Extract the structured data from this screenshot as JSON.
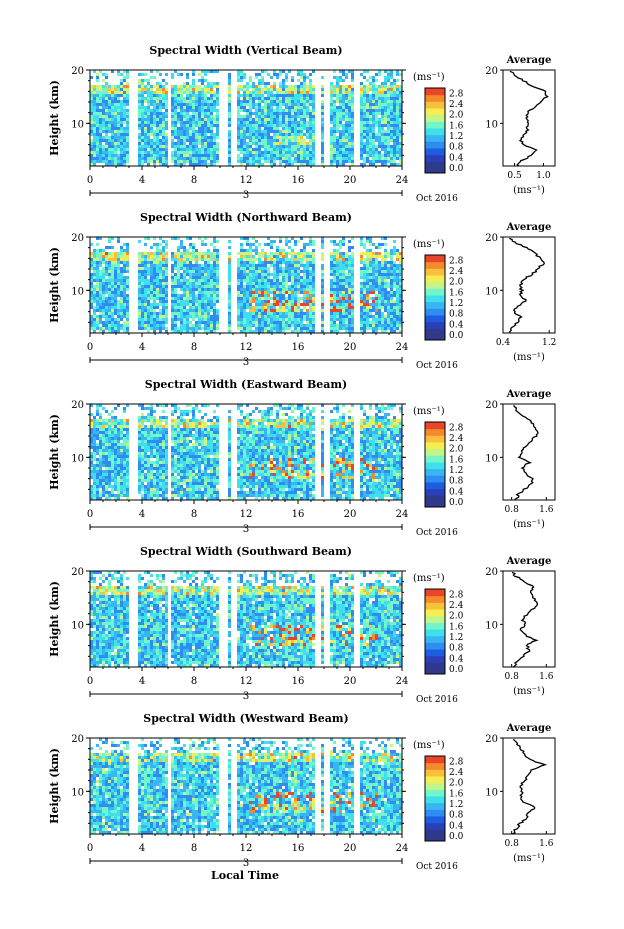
{
  "figure": {
    "xaxis_title": "Local Time",
    "month_label": "Oct 2016",
    "day_label": "3",
    "colorbar_unit": "(ms⁻¹)",
    "avg_title": "Average",
    "avg_unit": "(ms⁻¹)"
  },
  "chart_data": [
    {
      "type": "heatmap",
      "title": "Spectral Width (Vertical Beam)",
      "ylabel": "Height (km)",
      "xlim": [
        0,
        24
      ],
      "ylim": [
        2,
        20
      ],
      "xticks": [
        0,
        4,
        8,
        12,
        16,
        20,
        24
      ],
      "yticks": [
        10,
        20
      ],
      "colorbar": {
        "ticks": [
          "0.0",
          "0.4",
          "0.8",
          "1.2",
          "1.6",
          "2.0",
          "2.4",
          "2.8"
        ],
        "range": [
          0,
          3.0
        ]
      },
      "gaps_hours": [
        [
          3.0,
          3.5
        ],
        [
          5.8,
          6.2
        ],
        [
          9.9,
          10.4
        ],
        [
          10.7,
          11.1
        ],
        [
          17.2,
          17.6
        ],
        [
          18.0,
          18.3
        ],
        [
          20.3,
          20.6
        ]
      ],
      "average_profile": {
        "xlim": [
          0.3,
          1.2
        ],
        "xticks": [
          "0.5",
          "1.0"
        ],
        "ylim": [
          2,
          20
        ],
        "yticks": [
          "10",
          "20"
        ],
        "height_km": [
          2,
          3,
          4,
          5,
          6,
          7,
          8,
          9,
          10,
          11,
          12,
          13,
          14,
          15,
          16,
          17,
          18,
          19,
          20
        ],
        "width": [
          0.55,
          0.62,
          0.8,
          0.9,
          0.65,
          0.6,
          0.7,
          0.72,
          0.75,
          0.7,
          0.72,
          0.85,
          0.95,
          1.05,
          1.02,
          0.8,
          0.65,
          0.5,
          0.4
        ]
      }
    },
    {
      "type": "heatmap",
      "title": "Spectral Width (Northward Beam)",
      "ylabel": "Height (km)",
      "xlim": [
        0,
        24
      ],
      "ylim": [
        2,
        20
      ],
      "xticks": [
        0,
        4,
        8,
        12,
        16,
        20,
        24
      ],
      "yticks": [
        10,
        20
      ],
      "colorbar": {
        "ticks": [
          "0.0",
          "0.4",
          "0.8",
          "1.2",
          "1.6",
          "2.0",
          "2.4",
          "2.8"
        ],
        "range": [
          0,
          3.0
        ]
      },
      "gaps_hours": [
        [
          3.0,
          3.5
        ],
        [
          5.8,
          6.2
        ],
        [
          9.9,
          10.4
        ],
        [
          10.7,
          11.1
        ],
        [
          17.2,
          17.6
        ],
        [
          18.0,
          18.3
        ],
        [
          20.3,
          20.6
        ]
      ],
      "average_profile": {
        "xlim": [
          0.4,
          1.3
        ],
        "xticks": [
          "0.4",
          "1.2"
        ],
        "ylim": [
          2,
          20
        ],
        "yticks": [
          "10",
          "20"
        ],
        "height_km": [
          2,
          3,
          4,
          5,
          6,
          7,
          8,
          9,
          10,
          11,
          12,
          13,
          14,
          15,
          16,
          17,
          18,
          19,
          20
        ],
        "width": [
          0.5,
          0.55,
          0.65,
          0.7,
          0.6,
          0.65,
          0.8,
          0.7,
          0.72,
          0.7,
          0.75,
          0.9,
          1.0,
          1.1,
          1.05,
          0.95,
          0.8,
          0.6,
          0.5
        ]
      }
    },
    {
      "type": "heatmap",
      "title": "Spectral Width (Eastward Beam)",
      "ylabel": "Height (km)",
      "xlim": [
        0,
        24
      ],
      "ylim": [
        2,
        20
      ],
      "xticks": [
        0,
        4,
        8,
        12,
        16,
        20,
        24
      ],
      "yticks": [
        10,
        20
      ],
      "colorbar": {
        "ticks": [
          "0.0",
          "0.4",
          "0.8",
          "1.2",
          "1.6",
          "2.0",
          "2.4",
          "2.8"
        ],
        "range": [
          0,
          3.0
        ]
      },
      "gaps_hours": [
        [
          3.0,
          3.5
        ],
        [
          5.8,
          6.2
        ],
        [
          9.9,
          10.4
        ],
        [
          10.7,
          11.1
        ],
        [
          17.2,
          17.6
        ],
        [
          18.0,
          18.3
        ],
        [
          20.3,
          20.6
        ]
      ],
      "average_profile": {
        "xlim": [
          0.6,
          1.8
        ],
        "xticks": [
          "0.8",
          "1.6"
        ],
        "ylim": [
          2,
          20
        ],
        "yticks": [
          "10",
          "20"
        ],
        "height_km": [
          2,
          3,
          4,
          5,
          6,
          7,
          8,
          9,
          10,
          11,
          12,
          13,
          14,
          15,
          16,
          17,
          18,
          19,
          20
        ],
        "width": [
          0.9,
          0.95,
          1.1,
          1.25,
          1.3,
          1.1,
          1.05,
          1.2,
          1.0,
          1.05,
          1.1,
          1.25,
          1.35,
          1.4,
          1.3,
          1.2,
          1.0,
          0.9,
          0.8
        ]
      }
    },
    {
      "type": "heatmap",
      "title": "Spectral Width (Southward Beam)",
      "ylabel": "Height (km)",
      "xlim": [
        0,
        24
      ],
      "ylim": [
        2,
        20
      ],
      "xticks": [
        0,
        4,
        8,
        12,
        16,
        20,
        24
      ],
      "yticks": [
        10,
        20
      ],
      "colorbar": {
        "ticks": [
          "0.0",
          "0.4",
          "0.8",
          "1.2",
          "1.6",
          "2.0",
          "2.4",
          "2.8"
        ],
        "range": [
          0,
          3.0
        ]
      },
      "gaps_hours": [
        [
          3.0,
          3.5
        ],
        [
          5.8,
          6.2
        ],
        [
          9.9,
          10.4
        ],
        [
          10.7,
          11.1
        ],
        [
          17.2,
          17.6
        ],
        [
          18.0,
          18.3
        ],
        [
          20.3,
          20.6
        ]
      ],
      "average_profile": {
        "xlim": [
          0.6,
          1.8
        ],
        "xticks": [
          "0.8",
          "1.6"
        ],
        "ylim": [
          2,
          20
        ],
        "yticks": [
          "10",
          "20"
        ],
        "height_km": [
          2,
          3,
          4,
          5,
          6,
          7,
          8,
          9,
          10,
          11,
          12,
          13,
          14,
          15,
          16,
          17,
          18,
          19,
          20
        ],
        "width": [
          0.85,
          0.9,
          1.05,
          1.2,
          1.15,
          1.35,
          1.1,
          1.0,
          1.1,
          1.05,
          1.15,
          1.3,
          1.4,
          1.3,
          1.25,
          1.3,
          1.1,
          0.9,
          0.8
        ]
      }
    },
    {
      "type": "heatmap",
      "title": "Spectral Width (Westward Beam)",
      "ylabel": "Height (km)",
      "xlim": [
        0,
        24
      ],
      "ylim": [
        2,
        20
      ],
      "xticks": [
        0,
        4,
        8,
        12,
        16,
        20,
        24
      ],
      "yticks": [
        10,
        20
      ],
      "colorbar": {
        "ticks": [
          "0.0",
          "0.4",
          "0.8",
          "1.2",
          "1.6",
          "2.0",
          "2.4",
          "2.8"
        ],
        "range": [
          0,
          3.0
        ]
      },
      "gaps_hours": [
        [
          3.0,
          3.5
        ],
        [
          5.8,
          6.2
        ],
        [
          9.9,
          10.4
        ],
        [
          10.7,
          11.1
        ],
        [
          17.2,
          17.6
        ],
        [
          18.0,
          18.3
        ],
        [
          20.3,
          20.6
        ]
      ],
      "average_profile": {
        "xlim": [
          0.6,
          1.8
        ],
        "xticks": [
          "0.8",
          "1.6"
        ],
        "ylim": [
          2,
          20
        ],
        "yticks": [
          "10",
          "20"
        ],
        "height_km": [
          2,
          3,
          4,
          5,
          6,
          7,
          8,
          9,
          10,
          11,
          12,
          13,
          14,
          15,
          16,
          17,
          18,
          19,
          20
        ],
        "width": [
          0.85,
          0.9,
          1.0,
          1.15,
          1.2,
          1.35,
          1.05,
          1.0,
          1.05,
          1.0,
          1.1,
          1.2,
          1.25,
          1.55,
          1.2,
          1.1,
          1.0,
          0.9,
          0.8
        ]
      }
    }
  ]
}
